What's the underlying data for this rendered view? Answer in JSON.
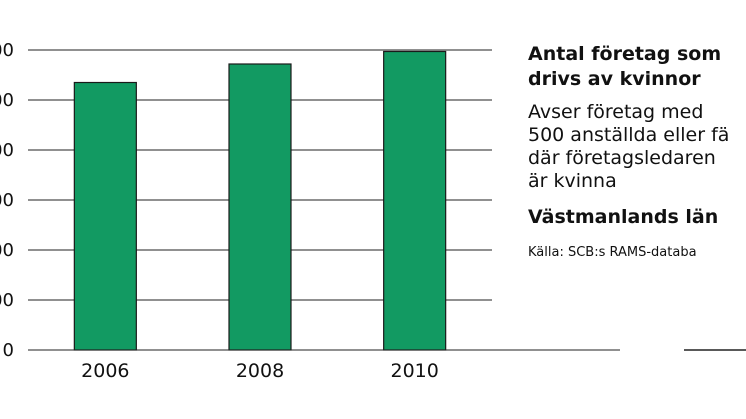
{
  "chart_data": {
    "type": "bar",
    "categories": [
      "2006",
      "2008",
      "2010"
    ],
    "values": [
      535,
      572,
      597
    ],
    "ylim": [
      0,
      600
    ],
    "yticks": [
      "0",
      "00",
      "00",
      "00",
      "00",
      "00",
      "00"
    ],
    "grid": true,
    "bar_color": "#129a62",
    "title_lines": [
      "Antal företag som",
      "drivs av kvinnor"
    ],
    "description_lines": [
      "Avser företag med",
      "500 anställda eller fä",
      "där företagsledaren",
      "är kvinna"
    ],
    "region": "Västmanlands län",
    "source": "Källa: SCB:s RAMS-databa"
  }
}
